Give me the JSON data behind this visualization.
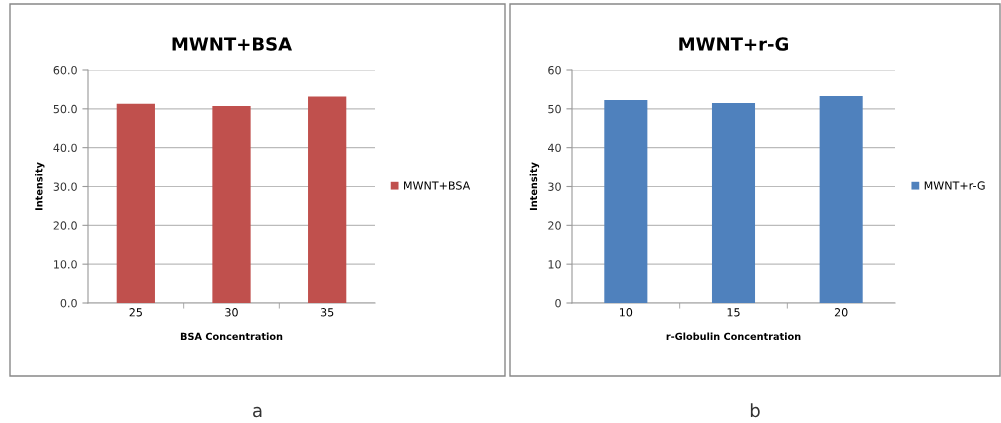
{
  "chart_data": [
    {
      "type": "bar",
      "title": "MWNT+BSA",
      "xlabel": "BSA Concentration",
      "ylabel": "Intensity",
      "categories": [
        "25",
        "30",
        "35"
      ],
      "series": [
        {
          "name": "MWNT+BSA",
          "color": "#c0504d",
          "values": [
            51.3,
            50.7,
            53.2
          ]
        }
      ],
      "ylim": [
        0,
        60
      ],
      "yticks": [
        {
          "value": 0,
          "label": "0.0"
        },
        {
          "value": 10,
          "label": "10.0"
        },
        {
          "value": 20,
          "label": "20.0"
        },
        {
          "value": 30,
          "label": "30.0"
        },
        {
          "value": 40,
          "label": "40.0"
        },
        {
          "value": 50,
          "label": "50.0"
        },
        {
          "value": 60,
          "label": "60.0"
        }
      ],
      "grid": "y",
      "legend": "right",
      "annotations": [
        "a"
      ]
    },
    {
      "type": "bar",
      "title": "MWNT+r-G",
      "xlabel": "r-Globulin Concentration",
      "ylabel": "Intensity",
      "categories": [
        "10",
        "15",
        "20"
      ],
      "series": [
        {
          "name": "MWNT+r-G",
          "color": "#4f81bd",
          "values": [
            52.3,
            51.5,
            53.3
          ]
        }
      ],
      "ylim": [
        0,
        60
      ],
      "yticks": [
        0,
        10,
        20,
        30,
        40,
        50,
        60
      ],
      "grid": "y",
      "legend": "right",
      "annotations": [
        "b"
      ]
    }
  ]
}
